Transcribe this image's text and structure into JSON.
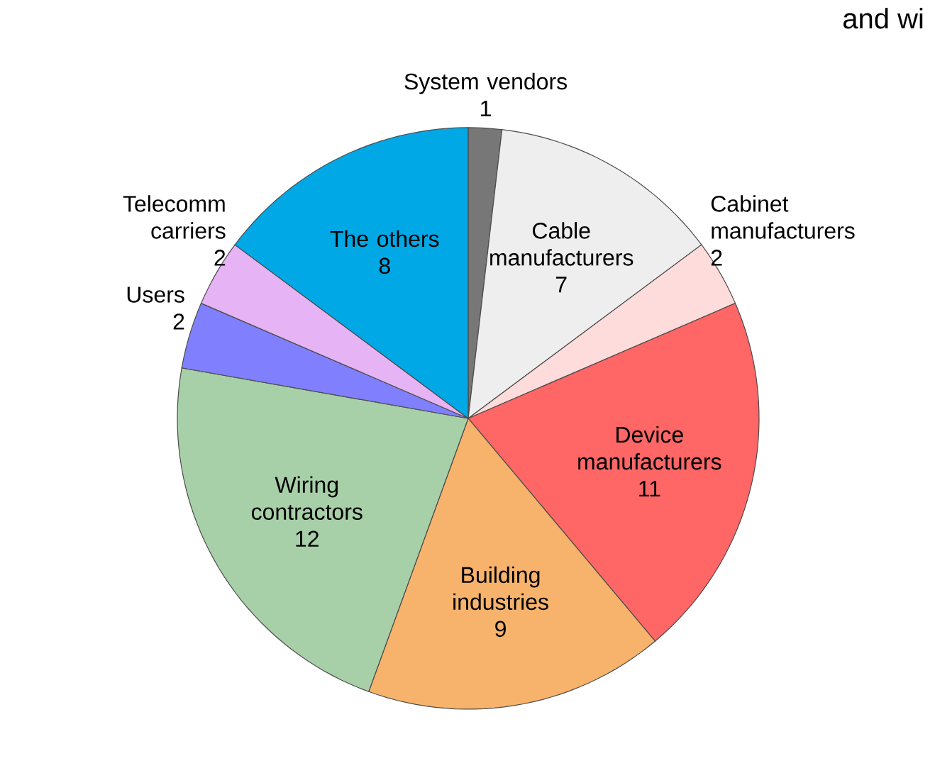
{
  "chart_data": {
    "type": "pie",
    "categories": [
      "System vendors",
      "Cable manufacturers",
      "Cabinet manufacturers",
      "Device manufacturers",
      "Building industries",
      "Wiring contractors",
      "Users",
      "Telecomm carriers",
      "The others"
    ],
    "values": [
      1,
      7,
      2,
      11,
      9,
      12,
      2,
      2,
      8
    ],
    "colors": [
      "#777777",
      "#eeeeee",
      "#ffdcdc",
      "#ff6666",
      "#f7b36b",
      "#a8d0a8",
      "#8080ff",
      "#e6b3f5",
      "#00a8e6"
    ],
    "data_labels": true,
    "annotations": [
      "and wi"
    ]
  }
}
